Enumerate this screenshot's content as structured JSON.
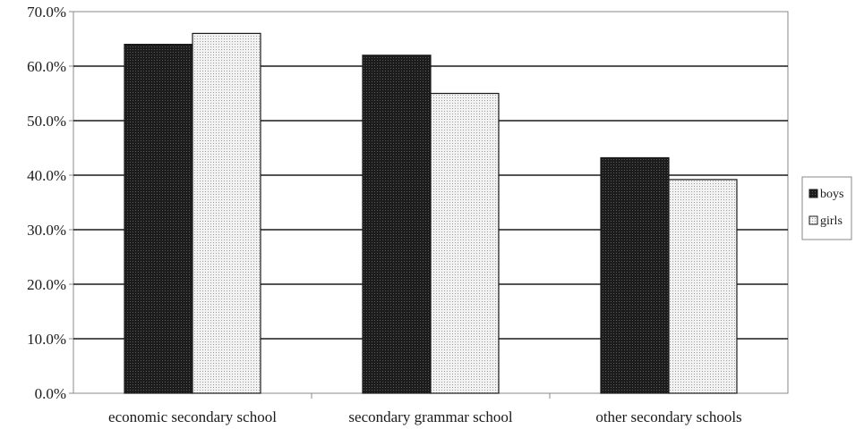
{
  "chart_data": {
    "type": "bar",
    "categories": [
      "economic secondary school",
      "secondary grammar school",
      "other secondary schools"
    ],
    "series": [
      {
        "name": "boys",
        "values": [
          64.0,
          62.0,
          43.2
        ],
        "color": "#2a2a2a"
      },
      {
        "name": "girls",
        "values": [
          66.0,
          55.0,
          39.2
        ],
        "color": "#e4e4e4"
      }
    ],
    "ylim": [
      0,
      70
    ],
    "yticks": [
      0,
      10,
      20,
      30,
      40,
      50,
      60,
      70
    ],
    "ytick_labels": [
      "0.0%",
      "10.0%",
      "20.0%",
      "30.0%",
      "40.0%",
      "50.0%",
      "60.0%",
      "70.0%"
    ],
    "grid": true,
    "legend_position": "right",
    "title": "",
    "xlabel": "",
    "ylabel": ""
  }
}
